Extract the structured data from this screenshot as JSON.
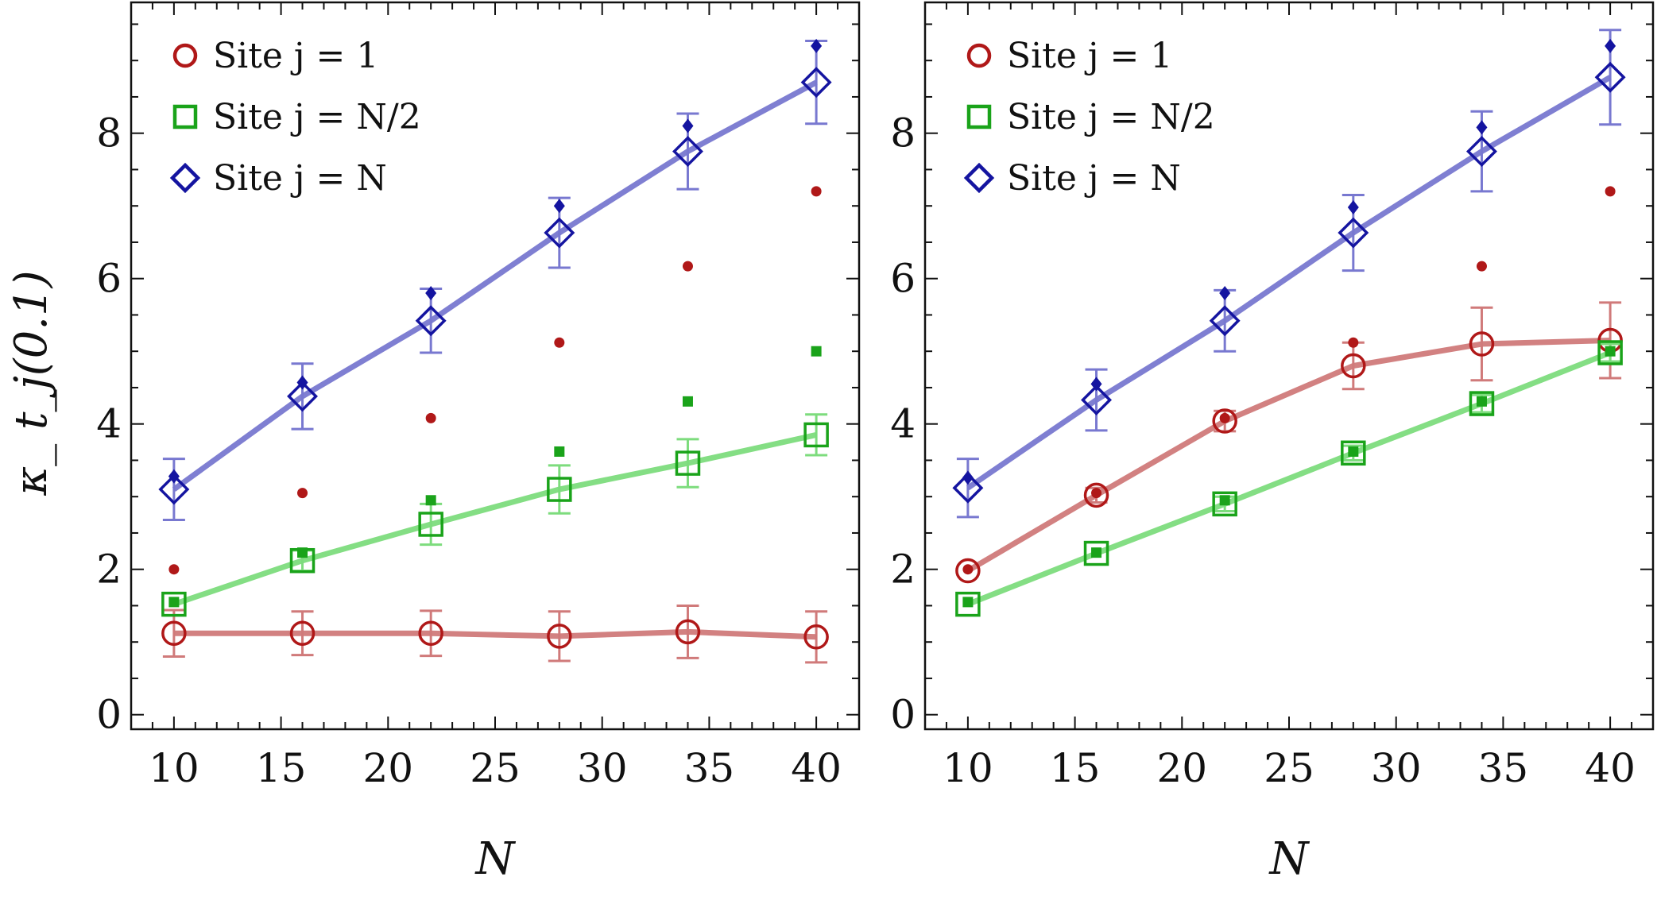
{
  "chart_data": [
    {
      "type": "line",
      "panel": "left",
      "xlabel": "N",
      "ylabel": "κ_ t_j(0.1)",
      "xlim": [
        8,
        42
      ],
      "ylim": [
        -0.2,
        9.8
      ],
      "xticks": [
        10,
        15,
        20,
        25,
        30,
        35,
        40
      ],
      "yticks": [
        0,
        2,
        4,
        6,
        8
      ],
      "x": [
        10,
        16,
        22,
        28,
        34,
        40
      ],
      "legend": [
        "Site j = 1",
        "Site j = N/2",
        "Site j = N"
      ],
      "series": [
        {
          "name": "Site j = 1",
          "color": "#b01818",
          "line_color": "#d07a7a",
          "marker": "circle",
          "values": [
            1.12,
            1.12,
            1.12,
            1.08,
            1.14,
            1.07
          ],
          "err": [
            0.32,
            0.3,
            0.31,
            0.34,
            0.36,
            0.35
          ],
          "ref": [
            2.0,
            3.05,
            4.08,
            5.12,
            6.17,
            7.2
          ]
        },
        {
          "name": "Site j = N/2",
          "color": "#1aa31a",
          "line_color": "#7ddc7d",
          "marker": "square",
          "values": [
            1.52,
            2.12,
            2.62,
            3.1,
            3.46,
            3.85
          ],
          "err": [
            0.06,
            0.14,
            0.28,
            0.33,
            0.33,
            0.28
          ],
          "ref": [
            1.55,
            2.23,
            2.95,
            3.62,
            4.31,
            5.0
          ]
        },
        {
          "name": "Site j = N",
          "color": "#1414a0",
          "line_color": "#7878d0",
          "marker": "diamond",
          "values": [
            3.1,
            4.38,
            5.42,
            6.63,
            7.75,
            8.7
          ],
          "err": [
            0.42,
            0.45,
            0.44,
            0.48,
            0.52,
            0.57
          ],
          "ref": [
            3.28,
            4.57,
            5.8,
            7.0,
            8.1,
            9.2
          ]
        }
      ]
    },
    {
      "type": "line",
      "panel": "right",
      "xlabel": "N",
      "ylabel": "",
      "xlim": [
        8,
        42
      ],
      "ylim": [
        -0.2,
        9.8
      ],
      "xticks": [
        10,
        15,
        20,
        25,
        30,
        35,
        40
      ],
      "yticks": [
        0,
        2,
        4,
        6,
        8
      ],
      "x": [
        10,
        16,
        22,
        28,
        34,
        40
      ],
      "legend": [
        "Site j = 1",
        "Site j = N/2",
        "Site j = N"
      ],
      "series": [
        {
          "name": "Site j = 1",
          "color": "#b01818",
          "line_color": "#d07a7a",
          "marker": "circle",
          "values": [
            1.98,
            3.02,
            4.04,
            4.8,
            5.1,
            5.15
          ],
          "err": [
            0.05,
            0.1,
            0.14,
            0.32,
            0.5,
            0.52
          ],
          "ref": [
            2.0,
            3.05,
            4.08,
            5.12,
            6.17,
            7.2
          ]
        },
        {
          "name": "Site j = N/2",
          "color": "#1aa31a",
          "line_color": "#7ddc7d",
          "marker": "square",
          "values": [
            1.52,
            2.22,
            2.9,
            3.6,
            4.28,
            4.98
          ],
          "err": [
            0.05,
            0.06,
            0.1,
            0.1,
            0.12,
            0.12
          ],
          "ref": [
            1.55,
            2.23,
            2.95,
            3.62,
            4.31,
            5.0
          ]
        },
        {
          "name": "Site j = N",
          "color": "#1414a0",
          "line_color": "#7878d0",
          "marker": "diamond",
          "values": [
            3.12,
            4.33,
            5.42,
            6.63,
            7.75,
            8.77
          ],
          "err": [
            0.4,
            0.42,
            0.42,
            0.52,
            0.55,
            0.65
          ],
          "ref": [
            3.26,
            4.55,
            5.8,
            6.98,
            8.08,
            9.2
          ]
        }
      ]
    }
  ]
}
